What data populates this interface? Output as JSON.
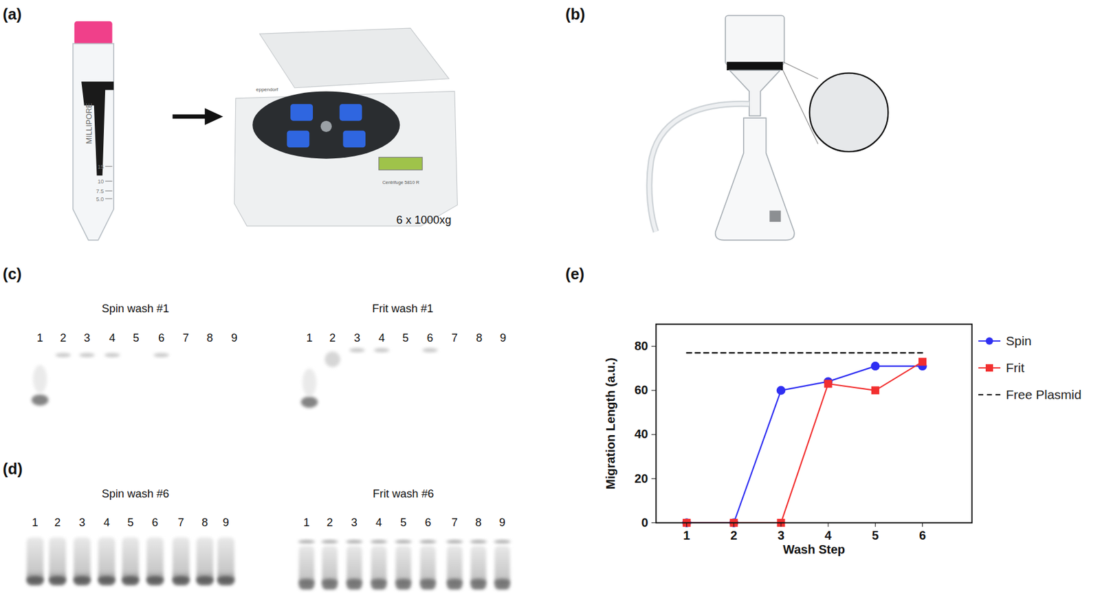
{
  "panels": {
    "a": {
      "label": "(a)",
      "tube_brand": "MILLIPORE",
      "tube_marks": [
        "15",
        "10",
        "7.5",
        "5.0"
      ],
      "centrifuge_texts": [
        "eppendorf",
        "Centrifuge 5810 R"
      ],
      "caption": "6 x 1000xg"
    },
    "b": {
      "label": "(b)"
    },
    "c": {
      "label": "(c)",
      "gels": [
        {
          "title": "Spin wash #1",
          "lanes": [
            1,
            2,
            3,
            4,
            5,
            6,
            7,
            8,
            9
          ]
        },
        {
          "title": "Frit wash #1",
          "lanes": [
            1,
            2,
            3,
            4,
            5,
            6,
            7,
            8,
            9
          ]
        }
      ]
    },
    "d": {
      "label": "(d)",
      "gels": [
        {
          "title": "Spin wash #6",
          "lanes": [
            1,
            2,
            3,
            4,
            5,
            6,
            7,
            8,
            9
          ]
        },
        {
          "title": "Frit wash #6",
          "lanes": [
            1,
            2,
            3,
            4,
            5,
            6,
            7,
            8,
            9
          ]
        }
      ]
    },
    "e": {
      "label": "(e)"
    }
  },
  "chart_data": {
    "type": "line",
    "x_label": "Wash Step",
    "y_label": "Migration Length (a.u.)",
    "x": [
      1,
      2,
      3,
      4,
      5,
      6
    ],
    "series": [
      {
        "name": "Spin",
        "color": "#2f2ff2",
        "marker": "circle",
        "line_style": "solid",
        "values": [
          0,
          0,
          60,
          64,
          71,
          71
        ]
      },
      {
        "name": "Frit",
        "color": "#f22f2f",
        "marker": "square",
        "line_style": "solid",
        "values": [
          0,
          0,
          0,
          63,
          60,
          73
        ]
      },
      {
        "name": "Free Plasmid",
        "color": "#000000",
        "marker": "none",
        "line_style": "dashed",
        "values": [
          77,
          77,
          77,
          77,
          77,
          77
        ]
      }
    ],
    "xlim": [
      0.35,
      7.05
    ],
    "ylim": [
      0,
      90
    ],
    "xticks": [
      1,
      2,
      3,
      4,
      5,
      6
    ],
    "yticks": [
      0,
      20,
      40,
      60,
      80
    ],
    "grid": false,
    "legend": "right"
  }
}
